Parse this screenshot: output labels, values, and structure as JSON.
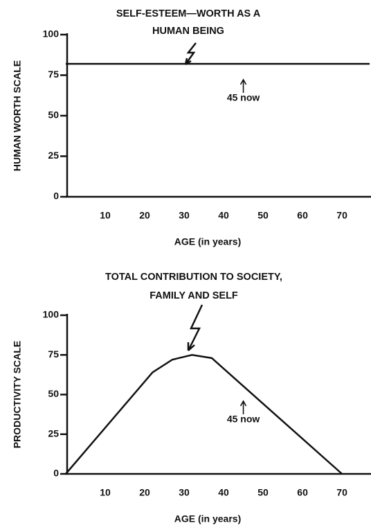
{
  "chart_data": [
    {
      "type": "line",
      "title": [
        "SELF-ESTEEM—WORTH AS A",
        "HUMAN BEING"
      ],
      "x_label": "AGE (in years)",
      "y_label": "HUMAN WORTH SCALE",
      "x": [
        0,
        77
      ],
      "series": [
        {
          "color": "#111111",
          "values": [
            82,
            82
          ]
        }
      ],
      "xlim": [
        0,
        77
      ],
      "xticks": [
        10,
        20,
        30,
        40,
        50,
        60,
        70
      ],
      "ylim": [
        0,
        100
      ],
      "yticks": [
        0,
        25,
        50,
        75,
        100
      ],
      "annotations": [
        {
          "text": "45 now",
          "x": 45
        }
      ]
    },
    {
      "type": "line",
      "title": [
        "TOTAL CONTRIBUTION TO SOCIETY,",
        "FAMILY AND SELF"
      ],
      "x_label": "AGE (in years)",
      "y_label": "PRODUCTIVITY SCALE",
      "x": [
        0,
        22,
        27,
        32,
        37,
        70
      ],
      "series": [
        {
          "color": "#111111",
          "values": [
            0,
            64,
            72,
            75,
            73,
            0
          ]
        }
      ],
      "xlim": [
        0,
        77
      ],
      "xticks": [
        10,
        20,
        30,
        40,
        50,
        60,
        70
      ],
      "ylim": [
        0,
        100
      ],
      "yticks": [
        0,
        25,
        50,
        75,
        100
      ],
      "annotations": [
        {
          "text": "45 now",
          "x": 45
        }
      ]
    }
  ]
}
